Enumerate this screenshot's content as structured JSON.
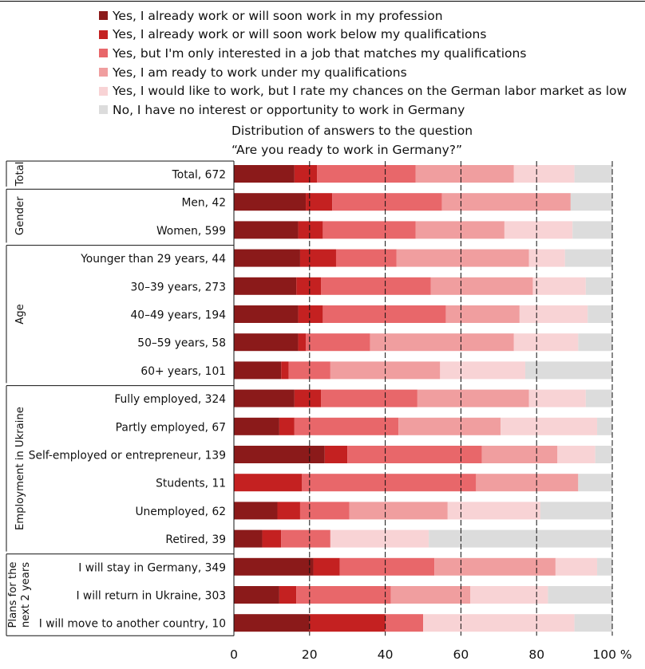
{
  "chart_data": {
    "type": "bar",
    "orientation": "horizontal",
    "stacked": true,
    "title": "",
    "subtitle_lines": [
      "Distribution of answers to the question",
      "“Are you ready to work in Germany?”"
    ],
    "x_ticks": [
      "0",
      "20",
      "40",
      "60",
      "80",
      "100 %"
    ],
    "xlim": [
      0,
      100
    ],
    "grid": "vertical dashed lines at ticks",
    "legend_position": "top",
    "series": [
      {
        "name": "Yes, I already work or will soon work in my profession",
        "color": "#8b1a1a"
      },
      {
        "name": "Yes, I already work or will soon work below my qualifications",
        "color": "#c42121"
      },
      {
        "name": "Yes, but I'm only interested in a job that matches my qualifications",
        "color": "#e8676a"
      },
      {
        "name": "Yes, I am ready to work under my qualifications",
        "color": "#f09e9f"
      },
      {
        "name": "Yes, I would like to work, but I rate my chances on the German labor market as low",
        "color": "#f8d3d5"
      },
      {
        "name": "No, I have no interest or opportunity to work in Germany",
        "color": "#dcdcdc"
      }
    ],
    "groups": [
      {
        "name": "Total",
        "rows": [
          {
            "label": "Total, 672",
            "values": [
              16,
              6,
              26,
              26,
              16,
              10
            ]
          }
        ]
      },
      {
        "name": "Gender",
        "rows": [
          {
            "label": "Men, 42",
            "values": [
              19,
              7,
              29,
              34,
              0,
              11
            ]
          },
          {
            "label": "Women, 599",
            "values": [
              17,
              6.5,
              24.5,
              23.5,
              18,
              10.5
            ]
          }
        ]
      },
      {
        "name": "Age",
        "rows": [
          {
            "label": "Younger than 29 years, 44",
            "values": [
              17.5,
              9.5,
              16,
              35,
              9.5,
              12.5
            ]
          },
          {
            "label": "30–39 years, 273",
            "values": [
              16.5,
              6.5,
              29,
              27,
              14,
              7
            ]
          },
          {
            "label": "40–49 years, 194",
            "values": [
              17,
              6.5,
              32.5,
              19.5,
              18,
              6.5
            ]
          },
          {
            "label": "50–59 years, 58",
            "values": [
              17,
              2,
              17,
              38,
              17,
              9
            ]
          },
          {
            "label": "60+ years, 101",
            "values": [
              12.5,
              2,
              11,
              29,
              22.5,
              23
            ]
          }
        ]
      },
      {
        "name": "Employment in Ukraine",
        "rows": [
          {
            "label": "Fully employed, 324",
            "values": [
              16,
              7,
              25.5,
              29.5,
              15,
              7
            ]
          },
          {
            "label": "Partly employed, 67",
            "values": [
              12,
              4,
              27.5,
              27,
              25.5,
              4
            ]
          },
          {
            "label": "Self-employed or entrepreneur, 139",
            "values": [
              24,
              6,
              35.5,
              20,
              10,
              4.5
            ]
          },
          {
            "label": "Students, 11",
            "values": [
              0,
              18,
              46,
              27,
              0,
              9
            ]
          },
          {
            "label": "Unemployed, 62",
            "values": [
              11.5,
              6,
              13,
              26,
              24.5,
              19
            ]
          },
          {
            "label": "Retired, 39",
            "values": [
              7.5,
              5,
              13,
              0,
              26,
              48.5
            ]
          }
        ]
      },
      {
        "name": "Plans for the next 2 years",
        "name_lines": [
          "Plans for the",
          "next 2 years"
        ],
        "rows": [
          {
            "label": "I will stay in Germany, 349",
            "values": [
              21,
              7,
              25,
              32,
              11,
              4
            ]
          },
          {
            "label": "I will return in Ukraine, 303",
            "values": [
              12,
              4.5,
              25,
              21,
              20.5,
              17
            ]
          },
          {
            "label": "I will move to another country, 10",
            "values": [
              20,
              20,
              10,
              0,
              40,
              10
            ]
          }
        ]
      }
    ]
  }
}
